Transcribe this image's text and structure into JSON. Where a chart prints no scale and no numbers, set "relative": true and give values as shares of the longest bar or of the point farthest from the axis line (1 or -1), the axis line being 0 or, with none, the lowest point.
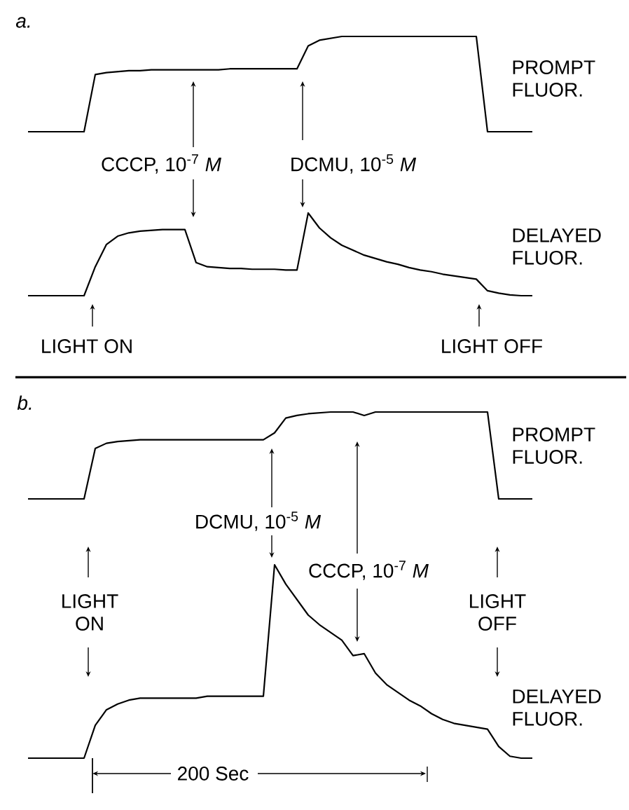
{
  "chart_data": [
    {
      "type": "line",
      "relative": true,
      "categories": [
        null,
        null,
        null,
        null,
        null,
        null,
        null,
        null,
        null,
        null,
        null,
        null,
        null,
        null,
        null,
        null,
        null,
        null,
        null,
        null,
        null,
        null,
        null,
        null,
        null,
        null,
        null,
        null,
        null,
        null,
        null,
        null,
        null,
        null,
        null,
        null,
        null,
        null,
        null,
        null,
        null,
        null,
        null,
        null,
        null,
        null
      ],
      "annotations": [
        "a.",
        "CCCP, 10$^{-7}$ *M*",
        "DCMU, 10$^{-5}$ *M*"
      ],
      "series": [
        {
          "name": "PROMPT FLUOR.",
          "color": "#000000",
          "values": [
            0,
            0,
            0,
            0,
            0,
            0,
            0.6,
            0.62,
            0.63,
            0.64,
            0.64,
            0.65,
            0.65,
            0.65,
            0.65,
            0.65,
            0.65,
            0.65,
            0.66,
            0.66,
            0.66,
            0.66,
            0.66,
            0.66,
            0.66,
            0.9,
            0.96,
            0.98,
            1,
            1,
            1,
            1,
            1,
            1,
            1,
            1,
            1,
            1,
            1,
            1,
            1,
            0,
            0,
            0,
            0,
            0
          ]
        }
      ]
    },
    {
      "type": "line",
      "relative": true,
      "categories": [
        null,
        null,
        null,
        null,
        null,
        null,
        null,
        null,
        null,
        null,
        null,
        null,
        null,
        null,
        null,
        null,
        null,
        null,
        null,
        null,
        null,
        null,
        null,
        null,
        null,
        null,
        null,
        null,
        null,
        null,
        null,
        null,
        null,
        null,
        null,
        null,
        null,
        null,
        null,
        null,
        null,
        null,
        null,
        null,
        null,
        null
      ],
      "series": [
        {
          "name": "DELAYED FLUOR.",
          "color": "#000000",
          "values": [
            0,
            0,
            0,
            0,
            0,
            0,
            0.35,
            0.62,
            0.72,
            0.76,
            0.78,
            0.79,
            0.8,
            0.8,
            0.8,
            0.4,
            0.35,
            0.34,
            0.33,
            0.33,
            0.32,
            0.32,
            0.32,
            0.31,
            0.31,
            1,
            0.82,
            0.7,
            0.61,
            0.55,
            0.49,
            0.45,
            0.41,
            0.38,
            0.34,
            0.31,
            0.29,
            0.26,
            0.24,
            0.22,
            0.2,
            0.06,
            0.03,
            0.01,
            0,
            0
          ]
        }
      ],
      "annotations": [
        "LIGHT ON",
        "LIGHT OFF"
      ]
    },
    {
      "type": "line",
      "title": "b.",
      "relative": true,
      "categories": [
        null,
        null,
        null,
        null,
        null,
        null,
        null,
        null,
        null,
        null,
        null,
        null,
        null,
        null,
        null,
        null,
        null,
        null,
        null,
        null,
        null,
        null,
        null,
        null,
        null,
        null,
        null,
        null,
        null,
        null,
        null,
        null,
        null,
        null,
        null,
        null,
        null,
        null,
        null,
        null,
        null,
        null,
        null,
        null,
        null,
        null
      ],
      "series": [
        {
          "name": "PROMPT FLUOR.",
          "color": "#000000",
          "values": [
            0,
            0,
            0,
            0,
            0,
            0,
            0.58,
            0.64,
            0.66,
            0.67,
            0.68,
            0.68,
            0.68,
            0.68,
            0.68,
            0.68,
            0.68,
            0.68,
            0.68,
            0.68,
            0.68,
            0.68,
            0.76,
            0.93,
            0.96,
            0.98,
            0.99,
            1,
            1,
            1,
            0.96,
            1,
            1,
            1,
            1,
            1,
            1,
            1,
            1,
            1,
            1,
            1,
            0,
            0,
            0,
            0
          ]
        }
      ]
    },
    {
      "type": "line",
      "relative": true,
      "categories": [
        null,
        null,
        null,
        null,
        null,
        null,
        null,
        null,
        null,
        null,
        null,
        null,
        null,
        null,
        null,
        null,
        null,
        null,
        null,
        null,
        null,
        null,
        null,
        null,
        null,
        null,
        null,
        null,
        null,
        null,
        null,
        null,
        null,
        null,
        null,
        null,
        null,
        null,
        null,
        null,
        null,
        null,
        null,
        null,
        null,
        null
      ],
      "series": [
        {
          "name": "DELAYED FLUOR.",
          "color": "#000000",
          "values": [
            0,
            0,
            0,
            0,
            0,
            0,
            0.17,
            0.25,
            0.28,
            0.3,
            0.31,
            0.31,
            0.31,
            0.31,
            0.31,
            0.31,
            0.32,
            0.32,
            0.32,
            0.32,
            0.32,
            0.32,
            1,
            0.9,
            0.82,
            0.74,
            0.69,
            0.65,
            0.61,
            0.53,
            0.54,
            0.44,
            0.38,
            0.34,
            0.3,
            0.27,
            0.23,
            0.2,
            0.18,
            0.17,
            0.16,
            0.15,
            0.06,
            0.01,
            0,
            0
          ]
        }
      ],
      "annotations": [
        "DCMU, 10$^{-5}$ *M*",
        "CCCP, 10$^{-7}$ *M*",
        "LIGHT ON",
        "LIGHT OFF",
        "200 Sec"
      ]
    }
  ]
}
